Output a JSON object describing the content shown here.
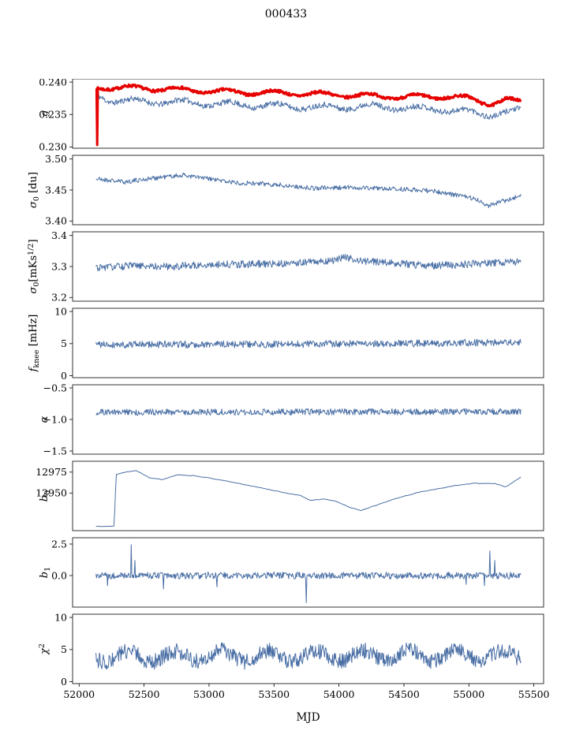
{
  "chart_data": {
    "type": "line",
    "title": "000433",
    "xlabel": "MJD",
    "xlim": [
      51950,
      55575
    ],
    "x_start": 52130,
    "x_end": 55400,
    "xticks": [
      52000,
      52500,
      53000,
      53500,
      54000,
      54500,
      55000,
      55500
    ],
    "xtick_labels": [
      "52000",
      "52500",
      "53000",
      "53500",
      "54000",
      "54500",
      "55000",
      "55500"
    ],
    "colors": {
      "blue": "#4a6fa5",
      "red": "#e60000",
      "axis": "#000000",
      "background": "#ffffff"
    },
    "panels": [
      {
        "name": "g",
        "ylabel": "g",
        "label_parts": [
          {
            "t": "g",
            "i": 1
          }
        ],
        "ylim": [
          0.2298,
          0.2405
        ],
        "yticks": [
          0.23,
          0.235,
          0.24
        ],
        "ytick_labels": [
          "0.230",
          "0.235",
          "0.240"
        ],
        "series": [
          {
            "color": "blue",
            "width": 1,
            "n": 700,
            "seed": 11,
            "noise": 0.00045,
            "osc": {
              "amp": 0.0004,
              "period": 365,
              "phase": 0.5
            },
            "controls": [
              [
                52130,
                0.238
              ],
              [
                52250,
                0.2372
              ],
              [
                52500,
                0.237
              ],
              [
                52800,
                0.2369
              ],
              [
                53100,
                0.2366
              ],
              [
                53400,
                0.2364
              ],
              [
                53700,
                0.2362
              ],
              [
                54000,
                0.2361
              ],
              [
                54200,
                0.2363
              ],
              [
                54500,
                0.236
              ],
              [
                54800,
                0.2358
              ],
              [
                55000,
                0.2354
              ],
              [
                55150,
                0.235
              ],
              [
                55300,
                0.2353
              ],
              [
                55400,
                0.2356
              ]
            ],
            "spikes": []
          },
          {
            "color": "red",
            "width": 3,
            "n": 700,
            "seed": 7,
            "noise": 0.00022,
            "osc": {
              "amp": 0.00035,
              "period": 365,
              "phase": 0.9
            },
            "controls": [
              [
                52130,
                0.2392
              ],
              [
                52400,
                0.2391
              ],
              [
                52700,
                0.2389
              ],
              [
                53000,
                0.2386
              ],
              [
                53300,
                0.2384
              ],
              [
                53600,
                0.2383
              ],
              [
                53900,
                0.2381
              ],
              [
                54200,
                0.2379
              ],
              [
                54500,
                0.2377
              ],
              [
                54800,
                0.2378
              ],
              [
                55000,
                0.2375
              ],
              [
                55100,
                0.237
              ],
              [
                55180,
                0.2367
              ],
              [
                55280,
                0.2372
              ],
              [
                55400,
                0.237
              ]
            ],
            "spikes": [
              [
                52138,
                0.2303
              ]
            ]
          }
        ]
      },
      {
        "name": "sigma0-du",
        "ylabel": "sigma0 [du]",
        "label_parts": [
          {
            "t": "σ",
            "i": 1
          },
          {
            "t": "0",
            "sub": 1
          },
          {
            "t": " [du]"
          }
        ],
        "ylim": [
          3.394,
          3.506
        ],
        "yticks": [
          3.4,
          3.45,
          3.5
        ],
        "ytick_labels": [
          "3.40",
          "3.45",
          "3.50"
        ],
        "series": [
          {
            "color": "blue",
            "width": 1,
            "n": 700,
            "seed": 21,
            "noise": 0.0038,
            "controls": [
              [
                52130,
                3.468
              ],
              [
                52350,
                3.463
              ],
              [
                52600,
                3.47
              ],
              [
                52800,
                3.474
              ],
              [
                53000,
                3.468
              ],
              [
                53200,
                3.462
              ],
              [
                53500,
                3.459
              ],
              [
                53800,
                3.453
              ],
              [
                54100,
                3.454
              ],
              [
                54400,
                3.452
              ],
              [
                54700,
                3.449
              ],
              [
                54900,
                3.442
              ],
              [
                55050,
                3.436
              ],
              [
                55150,
                3.425
              ],
              [
                55250,
                3.431
              ],
              [
                55400,
                3.441
              ]
            ],
            "spikes": []
          }
        ]
      },
      {
        "name": "sigma0-mks",
        "ylabel": "sigma0 [mKs^1/2]",
        "label_parts": [
          {
            "t": "σ",
            "i": 1
          },
          {
            "t": "0",
            "sub": 1
          },
          {
            "t": "[mKs"
          },
          {
            "t": "1/2",
            "sup": 1
          },
          {
            "t": "]"
          }
        ],
        "ylim": [
          3.188,
          3.412
        ],
        "yticks": [
          3.2,
          3.3,
          3.4
        ],
        "ytick_labels": [
          "3.2",
          "3.3",
          "3.4"
        ],
        "series": [
          {
            "color": "blue",
            "width": 1,
            "n": 700,
            "seed": 31,
            "noise": 0.012,
            "controls": [
              [
                52130,
                3.296
              ],
              [
                52400,
                3.302
              ],
              [
                52700,
                3.3
              ],
              [
                53000,
                3.306
              ],
              [
                53300,
                3.308
              ],
              [
                53600,
                3.31
              ],
              [
                53900,
                3.318
              ],
              [
                54050,
                3.328
              ],
              [
                54200,
                3.318
              ],
              [
                54400,
                3.312
              ],
              [
                54700,
                3.302
              ],
              [
                54900,
                3.305
              ],
              [
                55100,
                3.31
              ],
              [
                55400,
                3.316
              ]
            ],
            "spikes": []
          }
        ]
      },
      {
        "name": "fknee",
        "ylabel": "f_knee [mHz]",
        "label_parts": [
          {
            "t": "f",
            "i": 1
          },
          {
            "t": "knee",
            "sub": 1
          },
          {
            "t": " [mHz]"
          }
        ],
        "ylim": [
          -0.3,
          10.5
        ],
        "yticks": [
          0,
          5,
          10
        ],
        "ytick_labels": [
          "0",
          "5",
          "10"
        ],
        "series": [
          {
            "color": "blue",
            "width": 1,
            "n": 700,
            "seed": 41,
            "noise": 0.55,
            "controls": [
              [
                52130,
                4.85
              ],
              [
                53500,
                4.9
              ],
              [
                54500,
                5.0
              ],
              [
                55400,
                5.2
              ]
            ],
            "spikes": []
          }
        ]
      },
      {
        "name": "alpha",
        "ylabel": "alpha",
        "label_parts": [
          {
            "t": "α",
            "i": 1
          }
        ],
        "ylim": [
          -1.55,
          -0.45
        ],
        "yticks": [
          -0.5,
          -1.0,
          -1.5
        ],
        "ytick_labels": [
          "−0.5",
          "−1.0",
          "−1.5"
        ],
        "series": [
          {
            "color": "blue",
            "width": 1,
            "n": 700,
            "seed": 51,
            "noise": 0.05,
            "controls": [
              [
                52130,
                -0.885
              ],
              [
                55400,
                -0.875
              ]
            ],
            "spikes": []
          }
        ]
      },
      {
        "name": "b0",
        "ylabel": "b_0",
        "label_parts": [
          {
            "t": "b",
            "i": 1
          },
          {
            "t": "0",
            "sub": 1
          }
        ],
        "ylim": [
          12905,
          12988
        ],
        "yticks": [
          12950,
          12975
        ],
        "ytick_labels": [
          "12950",
          "12975"
        ],
        "series": [
          {
            "color": "blue",
            "width": 1,
            "n": 500,
            "seed": 61,
            "noise": 0.5,
            "smooth": true,
            "controls": [
              [
                52130,
                12910
              ],
              [
                52270,
                12910
              ],
              [
                52285,
                12972
              ],
              [
                52360,
                12975
              ],
              [
                52440,
                12977
              ],
              [
                52540,
                12968
              ],
              [
                52640,
                12966
              ],
              [
                52760,
                12972
              ],
              [
                52880,
                12971
              ],
              [
                53000,
                12968
              ],
              [
                53200,
                12962
              ],
              [
                53400,
                12956
              ],
              [
                53600,
                12950
              ],
              [
                53700,
                12947
              ],
              [
                53780,
                12941
              ],
              [
                53880,
                12943
              ],
              [
                53980,
                12940
              ],
              [
                54080,
                12933
              ],
              [
                54170,
                12929
              ],
              [
                54300,
                12936
              ],
              [
                54450,
                12944
              ],
              [
                54600,
                12950
              ],
              [
                54750,
                12955
              ],
              [
                54900,
                12959
              ],
              [
                55050,
                12962
              ],
              [
                55200,
                12961
              ],
              [
                55280,
                12957
              ],
              [
                55400,
                12969
              ]
            ],
            "spikes": []
          }
        ]
      },
      {
        "name": "b1",
        "ylabel": "b_1",
        "label_parts": [
          {
            "t": "b",
            "i": 1
          },
          {
            "t": "1",
            "sub": 1
          }
        ],
        "ylim": [
          -2.5,
          3.0
        ],
        "yticks": [
          0.0,
          2.5
        ],
        "ytick_labels": [
          "0.0",
          "2.5"
        ],
        "series": [
          {
            "color": "blue",
            "width": 1,
            "n": 700,
            "seed": 71,
            "noise": 0.27,
            "controls": [
              [
                52130,
                0.0
              ],
              [
                55400,
                0.0
              ]
            ],
            "spikes": [
              [
                52400,
                2.45
              ],
              [
                52430,
                1.2
              ],
              [
                52220,
                -0.8
              ],
              [
                52650,
                -1.05
              ],
              [
                53060,
                -0.9
              ],
              [
                53750,
                -2.15
              ],
              [
                54980,
                -0.7
              ],
              [
                55120,
                -0.8
              ],
              [
                55160,
                1.95
              ],
              [
                55200,
                1.2
              ]
            ]
          }
        ]
      },
      {
        "name": "chi2",
        "ylabel": "chi^2",
        "label_parts": [
          {
            "t": "χ",
            "i": 1
          },
          {
            "t": "2",
            "sup": 1
          }
        ],
        "ylim": [
          -0.3,
          10.5
        ],
        "yticks": [
          0,
          5,
          10
        ],
        "ytick_labels": [
          "0",
          "5",
          "10"
        ],
        "series": [
          {
            "color": "blue",
            "width": 1,
            "n": 750,
            "seed": 81,
            "noise": 1.25,
            "osc": {
              "amp": 0.85,
              "period": 360,
              "phase": 1.2
            },
            "controls": [
              [
                52130,
                3.9
              ],
              [
                55400,
                4.1
              ]
            ],
            "spikes": []
          }
        ]
      }
    ]
  }
}
